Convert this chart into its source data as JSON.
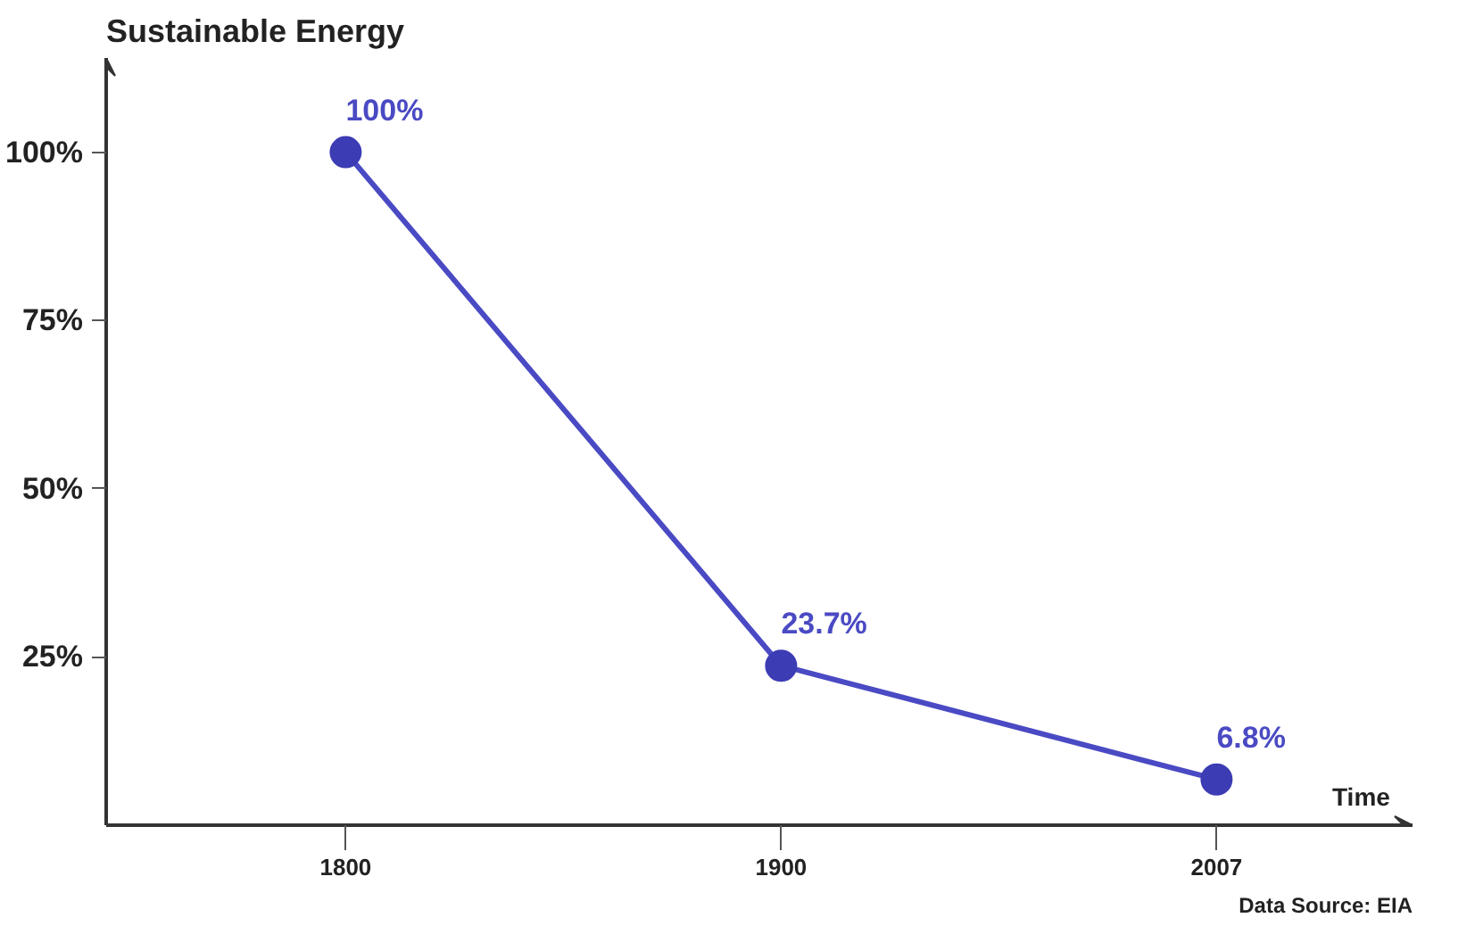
{
  "chart_data": {
    "type": "line",
    "ylabel": "Sustainable Energy",
    "xlabel": "Time",
    "categories": [
      "1800",
      "1900",
      "2007"
    ],
    "values": [
      100,
      23.7,
      6.8
    ],
    "value_labels": [
      "100%",
      "23.7%",
      "6.8%"
    ],
    "color": "#4a4ac4",
    "marker": "circle",
    "line_style": "solid",
    "ylim": [
      0,
      114
    ],
    "yticks": [
      {
        "value": 25,
        "label": "25%"
      },
      {
        "value": 50,
        "label": "50%"
      },
      {
        "value": 75,
        "label": "75%"
      },
      {
        "value": 100,
        "label": "100%"
      }
    ],
    "grid": false,
    "annotations": [
      "Data Source: EIA"
    ]
  }
}
